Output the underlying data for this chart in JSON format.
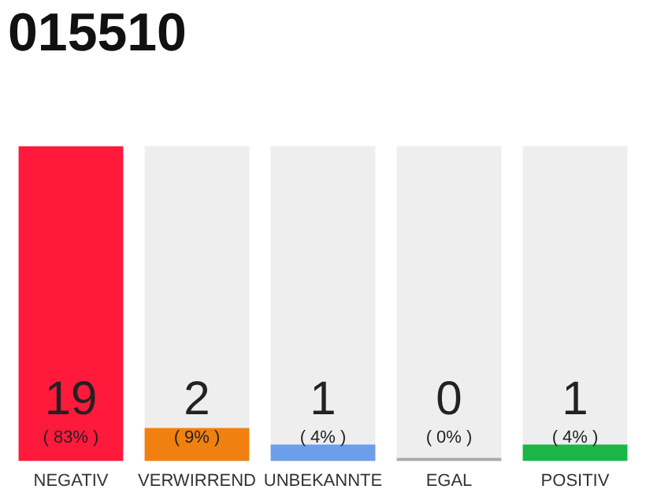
{
  "chart_data": {
    "type": "bar",
    "title": "015510",
    "categories": [
      "NEGATIV",
      "VERWIRREND",
      "UNBEKANNTE",
      "EGAL",
      "POSITIV"
    ],
    "values": [
      19,
      2,
      1,
      0,
      1
    ],
    "colors": [
      "#ff1a3c",
      "#f08010",
      "#6d9eeb",
      "#aaaaaa",
      "#1cb548"
    ],
    "ylim": [
      0,
      19
    ],
    "data_labels": true,
    "annotations": [
      "( 83% )",
      "( 9% )",
      "( 4% )",
      "( 0% )",
      "( 4% )"
    ],
    "tick_labels": "x",
    "grid": false,
    "legend": false
  }
}
